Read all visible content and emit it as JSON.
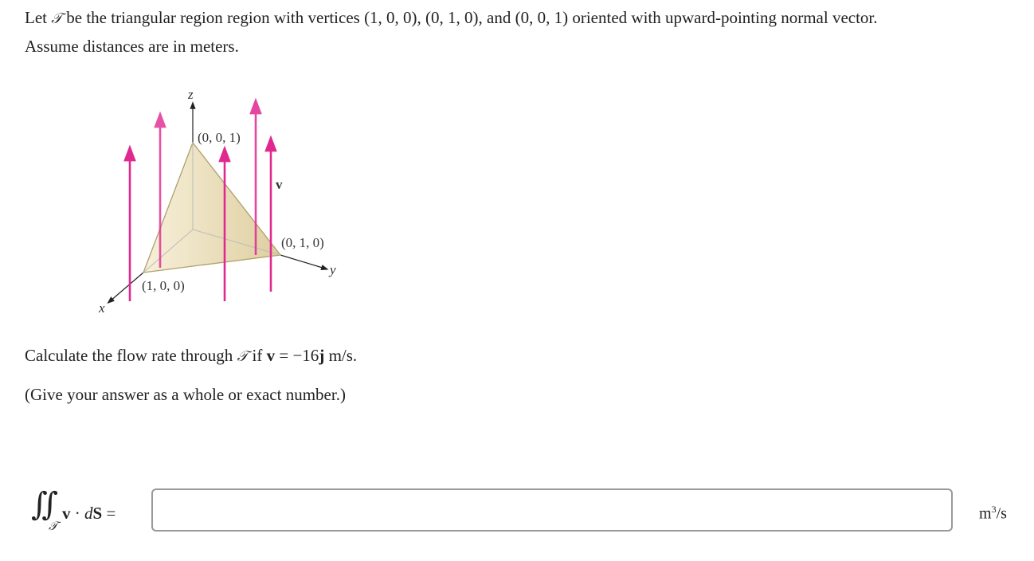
{
  "problem": {
    "intro_pre": "Let ",
    "surface_symbol": "𝒯",
    "intro_post": " be the triangular region region with vertices (1, 0, 0), (0, 1, 0), and (0, 0, 1) oriented with upward-pointing normal vector.",
    "line2": "Assume distances are in meters.",
    "question_pre": "Calculate the flow rate through ",
    "question_post": " if ",
    "v": "v",
    "question_eq": " = −16",
    "j": "j",
    "question_unit": " m/s.",
    "instruction": "(Give your answer as a whole or exact number.)"
  },
  "figure": {
    "label_z": "z",
    "label_y": "y",
    "label_x": "x",
    "label_v": "v",
    "vertex_001": "(0, 0, 1)",
    "vertex_010": "(0, 1, 0)",
    "vertex_100": "(1, 0, 0)",
    "arrow_color": "#e0288f",
    "surface_color": "#e6d8b0"
  },
  "answer": {
    "integral_sign": "∬",
    "subscript": "𝒯",
    "expr_v": "v",
    "expr_dot": " · ",
    "expr_d": "d",
    "expr_S": "S",
    "expr_eq": " =",
    "value": "",
    "unit_base": "m",
    "unit_exp": "3",
    "unit_rest": "/s"
  }
}
